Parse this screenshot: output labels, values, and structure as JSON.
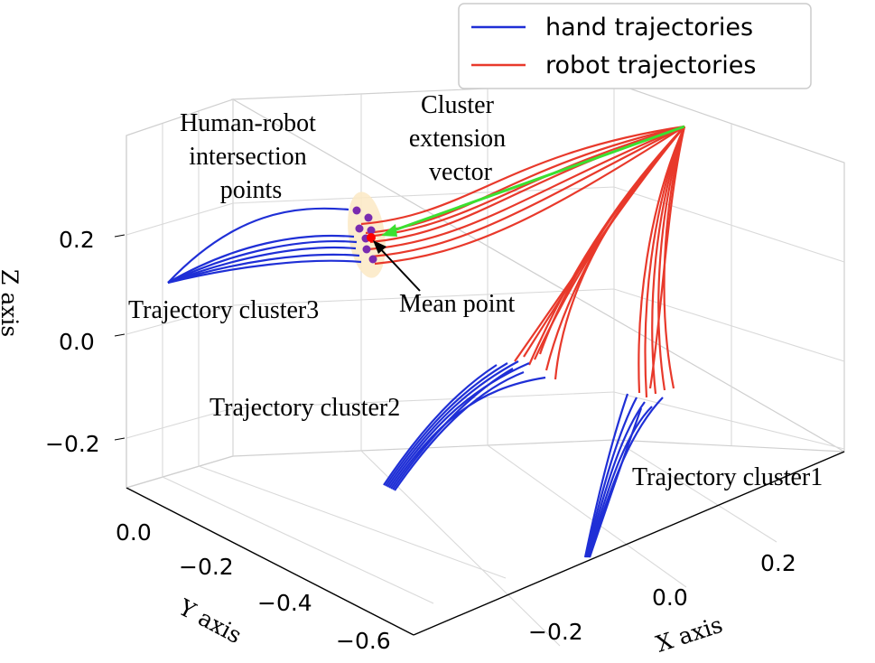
{
  "chart_data": {
    "type": "line",
    "projection": "3d",
    "grid": true,
    "legend_placement": "top-right",
    "legend": [
      {
        "label": "hand trajectories",
        "color": "#1f2fd6"
      },
      {
        "label": "robot trajectories",
        "color": "#e8392b"
      }
    ],
    "axes": {
      "x": {
        "label": "X axis",
        "ticks": [
          "−0.2",
          "0.0",
          "0.2"
        ]
      },
      "y": {
        "label": "Y axis",
        "ticks": [
          "0.0",
          "−0.2",
          "−0.4",
          "−0.6"
        ]
      },
      "z": {
        "label": "Z axis",
        "ticks": [
          "0.2",
          "0.0",
          "−0.2"
        ]
      }
    },
    "annotations": {
      "intersection": "Human-robot intersection points",
      "extension_vector": "Cluster extension vector",
      "mean_point": "Mean point",
      "cluster1": "Trajectory cluster1",
      "cluster2": "Trajectory cluster2",
      "cluster3": "Trajectory cluster3"
    },
    "colors": {
      "hand": "#1f2fd6",
      "robot": "#e8392b",
      "extension_vector": "#3be030",
      "intersection_points": "#7a2bb0",
      "mean_point": "#ff0000",
      "intersection_region": "#fbe9c4"
    }
  }
}
